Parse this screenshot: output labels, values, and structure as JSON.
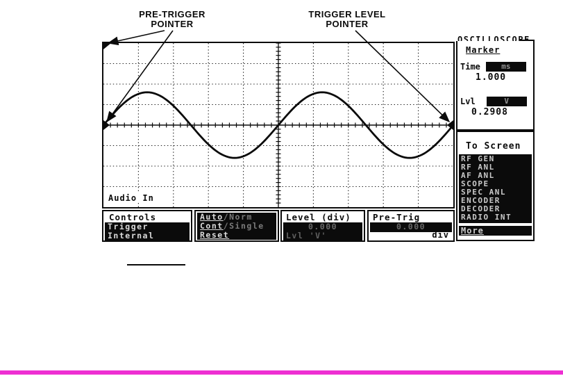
{
  "colors": {
    "bottom_bar": "#ee2fd2",
    "ink": "#0b0b0b"
  },
  "annotations": {
    "pre_trigger_label": "PRE-TRIGGER\nPOINTER",
    "trigger_level_label": "TRIGGER LEVEL\nPOINTER"
  },
  "scope": {
    "channel_label": "Audio In",
    "waveform": {
      "type": "line",
      "shape": "sine",
      "cycles": 2,
      "amplitude_divisions": 1.6,
      "grid_columns": 10,
      "grid_rows": 8,
      "starts": "rising at left edge on center line",
      "markers": [
        "pre-trigger pointer top-left",
        "pre-trigger pointer left-center",
        "trigger level pointer right-center"
      ]
    }
  },
  "panel": {
    "title": "OSCILLOSCOPE",
    "marker": {
      "heading": "Marker",
      "time_label": "Time",
      "time_unit": "ms",
      "time_value": "1.000",
      "lvl_label": "Lvl",
      "lvl_unit": "V",
      "lvl_value": "0.2908"
    },
    "to_screen": {
      "heading": "To Screen",
      "items": [
        "RF GEN",
        "RF ANL",
        "AF ANL",
        "SCOPE",
        "SPEC ANL",
        "ENCODER",
        "DECODER",
        "RADIO INT"
      ],
      "more_label": "More"
    }
  },
  "softkeys": {
    "controls": {
      "heading": "Controls",
      "items": [
        "Trigger",
        "Internal"
      ]
    },
    "trigger_modes": {
      "items": [
        {
          "active": "Auto",
          "alt": "/Norm"
        },
        {
          "active": "Cont",
          "alt": "/Single"
        },
        {
          "active": "Reset",
          "alt": ""
        }
      ]
    },
    "level": {
      "heading": "Level (div)",
      "value": "0.000",
      "sub": "Lvl 'V'"
    },
    "pretrig": {
      "heading": "Pre-Trig",
      "value": "0.000",
      "unit": "div"
    }
  }
}
